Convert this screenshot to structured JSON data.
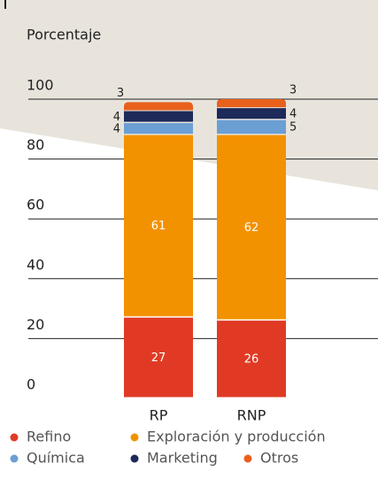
{
  "chart_data": {
    "type": "stacked_bar",
    "y_axis_label": "Porcentaje",
    "categories": [
      "RP",
      "RNP"
    ],
    "series": [
      {
        "name": "Refino",
        "color": "#e03a25",
        "values": [
          27,
          26
        ]
      },
      {
        "name": "Exploración y producción",
        "color": "#f39200",
        "values": [
          61,
          62
        ]
      },
      {
        "name": "Química",
        "color": "#6b9fd4",
        "values": [
          4,
          5
        ]
      },
      {
        "name": "Marketing",
        "color": "#1d2a5a",
        "values": [
          4,
          4
        ]
      },
      {
        "name": "Otros",
        "color": "#e8601c",
        "values": [
          3,
          3
        ]
      }
    ],
    "ylim": [
      0,
      100
    ],
    "yticks": [
      0,
      20,
      40,
      60,
      80,
      100
    ],
    "grid": true
  }
}
